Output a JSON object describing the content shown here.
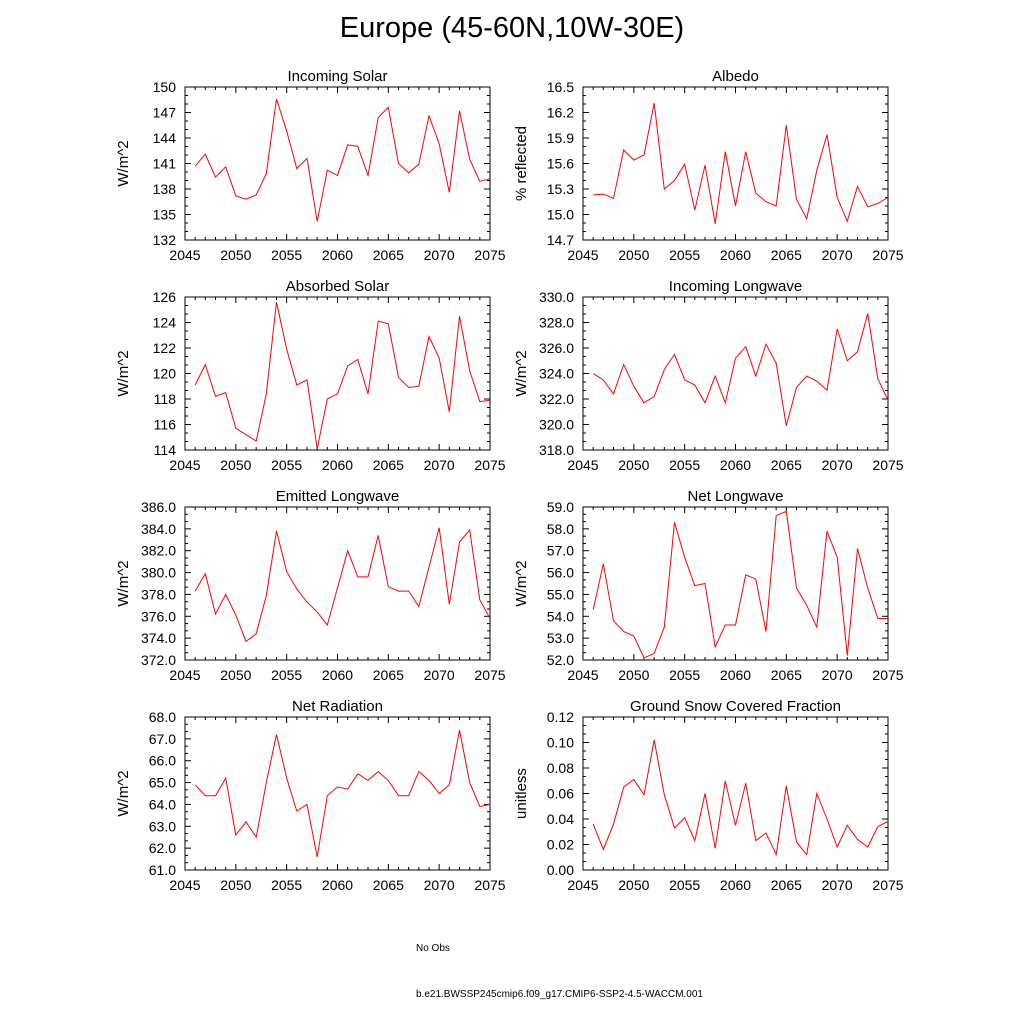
{
  "figure_title": "Europe (45-60N,10W-30E)",
  "legend": {
    "obs_label": "No Obs",
    "model_label": "b.e21.BWSSP245cmip6.f09_g17.CMIP6-SSP2-4.5-WACCM.001",
    "obs_color": "#3a3aa8",
    "model_color": "#ff0000"
  },
  "chart_data": [
    {
      "type": "line",
      "title": "Incoming Solar",
      "ylabel": "W/m^2",
      "xlabel": "",
      "xlim": [
        2045,
        2075
      ],
      "ylim": [
        132,
        150
      ],
      "yticks": [
        "132",
        "135",
        "138",
        "141",
        "144",
        "147",
        "150"
      ],
      "xticks": [
        "2045",
        "2050",
        "2055",
        "2060",
        "2065",
        "2070",
        "2075"
      ],
      "series": [
        {
          "name": "b.e21.BWSSP245cmip6.f09_g17.CMIP6-SSP2-4.5-WACCM.001",
          "x": [
            2046,
            2047,
            2048,
            2049,
            2050,
            2051,
            2052,
            2053,
            2054,
            2055,
            2056,
            2057,
            2058,
            2059,
            2060,
            2061,
            2062,
            2063,
            2064,
            2065,
            2066,
            2067,
            2068,
            2069,
            2070,
            2071,
            2072,
            2073,
            2074,
            2075
          ],
          "values": [
            140.7,
            142.1,
            139.4,
            140.6,
            137.2,
            136.8,
            137.3,
            139.8,
            148.6,
            144.8,
            140.4,
            141.6,
            134.2,
            140.2,
            139.6,
            143.2,
            143.0,
            139.6,
            146.4,
            147.6,
            141.0,
            139.9,
            140.9,
            146.6,
            143.3,
            137.6,
            147.2,
            141.5,
            138.9,
            139.2
          ]
        }
      ]
    },
    {
      "type": "line",
      "title": "Albedo",
      "ylabel": "% reflected",
      "xlabel": "",
      "xlim": [
        2045,
        2075
      ],
      "ylim": [
        14.7,
        16.5
      ],
      "yticks": [
        "14.7",
        "15.0",
        "15.3",
        "15.6",
        "15.9",
        "16.2",
        "16.5"
      ],
      "xticks": [
        "2045",
        "2050",
        "2055",
        "2060",
        "2065",
        "2070",
        "2075"
      ],
      "series": [
        {
          "name": "b.e21.BWSSP245cmip6.f09_g17.CMIP6-SSP2-4.5-WACCM.001",
          "x": [
            2046,
            2047,
            2048,
            2049,
            2050,
            2051,
            2052,
            2053,
            2054,
            2055,
            2056,
            2057,
            2058,
            2059,
            2060,
            2061,
            2062,
            2063,
            2064,
            2065,
            2066,
            2067,
            2068,
            2069,
            2070,
            2071,
            2072,
            2073,
            2074,
            2075
          ],
          "values": [
            15.23,
            15.24,
            15.19,
            15.76,
            15.64,
            15.7,
            16.31,
            15.3,
            15.4,
            15.59,
            15.05,
            15.58,
            14.89,
            15.74,
            15.1,
            15.74,
            15.25,
            15.15,
            15.1,
            16.05,
            15.18,
            14.95,
            15.52,
            15.94,
            15.2,
            14.92,
            15.33,
            15.09,
            15.13,
            15.2
          ]
        }
      ]
    },
    {
      "type": "line",
      "title": "Absorbed Solar",
      "ylabel": "W/m^2",
      "xlabel": "",
      "xlim": [
        2045,
        2075
      ],
      "ylim": [
        114,
        126
      ],
      "yticks": [
        "114",
        "116",
        "118",
        "120",
        "122",
        "124",
        "126"
      ],
      "xticks": [
        "2045",
        "2050",
        "2055",
        "2060",
        "2065",
        "2070",
        "2075"
      ],
      "series": [
        {
          "name": "b.e21.BWSSP245cmip6.f09_g17.CMIP6-SSP2-4.5-WACCM.001",
          "x": [
            2046,
            2047,
            2048,
            2049,
            2050,
            2051,
            2052,
            2053,
            2054,
            2055,
            2056,
            2057,
            2058,
            2059,
            2060,
            2061,
            2062,
            2063,
            2064,
            2065,
            2066,
            2067,
            2068,
            2069,
            2070,
            2071,
            2072,
            2073,
            2074,
            2075
          ],
          "values": [
            119.1,
            120.7,
            118.2,
            118.5,
            115.7,
            115.2,
            114.7,
            118.4,
            125.6,
            121.9,
            119.1,
            119.5,
            114.1,
            118.0,
            118.4,
            120.6,
            121.1,
            118.4,
            124.1,
            123.9,
            119.7,
            118.9,
            119.0,
            122.9,
            121.2,
            117.0,
            124.5,
            120.2,
            117.8,
            117.9
          ]
        }
      ]
    },
    {
      "type": "line",
      "title": "Incoming Longwave",
      "ylabel": "W/m^2",
      "xlabel": "",
      "xlim": [
        2045,
        2075
      ],
      "ylim": [
        318.0,
        330.0
      ],
      "yticks": [
        "318.0",
        "320.0",
        "322.0",
        "324.0",
        "326.0",
        "328.0",
        "330.0"
      ],
      "xticks": [
        "2045",
        "2050",
        "2055",
        "2060",
        "2065",
        "2070",
        "2075"
      ],
      "series": [
        {
          "name": "b.e21.BWSSP245cmip6.f09_g17.CMIP6-SSP2-4.5-WACCM.001",
          "x": [
            2046,
            2047,
            2048,
            2049,
            2050,
            2051,
            2052,
            2053,
            2054,
            2055,
            2056,
            2057,
            2058,
            2059,
            2060,
            2061,
            2062,
            2063,
            2064,
            2065,
            2066,
            2067,
            2068,
            2069,
            2070,
            2071,
            2072,
            2073,
            2074,
            2075
          ],
          "values": [
            324.0,
            323.5,
            322.4,
            324.7,
            323.0,
            321.7,
            322.2,
            324.3,
            325.5,
            323.5,
            323.1,
            321.7,
            323.8,
            321.7,
            325.2,
            326.1,
            323.8,
            326.3,
            324.8,
            319.9,
            322.9,
            323.8,
            323.4,
            322.7,
            327.5,
            325.0,
            325.7,
            328.7,
            323.6,
            321.9
          ]
        }
      ]
    },
    {
      "type": "line",
      "title": "Emitted Longwave",
      "ylabel": "W/m^2",
      "xlabel": "",
      "xlim": [
        2045,
        2075
      ],
      "ylim": [
        372.0,
        386.0
      ],
      "yticks": [
        "372.0",
        "374.0",
        "376.0",
        "378.0",
        "380.0",
        "382.0",
        "384.0",
        "386.0"
      ],
      "xticks": [
        "2045",
        "2050",
        "2055",
        "2060",
        "2065",
        "2070",
        "2075"
      ],
      "series": [
        {
          "name": "b.e21.BWSSP245cmip6.f09_g17.CMIP6-SSP2-4.5-WACCM.001",
          "x": [
            2046,
            2047,
            2048,
            2049,
            2050,
            2051,
            2052,
            2053,
            2054,
            2055,
            2056,
            2057,
            2058,
            2059,
            2060,
            2061,
            2062,
            2063,
            2064,
            2065,
            2066,
            2067,
            2068,
            2069,
            2070,
            2071,
            2072,
            2073,
            2074,
            2075
          ],
          "values": [
            378.3,
            379.9,
            376.2,
            378.0,
            376.1,
            373.7,
            374.4,
            377.9,
            383.8,
            380.1,
            378.5,
            377.3,
            376.4,
            375.2,
            378.6,
            382.0,
            379.6,
            379.6,
            383.4,
            378.7,
            378.3,
            378.3,
            376.9,
            380.5,
            384.1,
            377.1,
            382.8,
            383.9,
            377.5,
            375.8
          ]
        }
      ]
    },
    {
      "type": "line",
      "title": "Net Longwave",
      "ylabel": "W/m^2",
      "xlabel": "",
      "xlim": [
        2045,
        2075
      ],
      "ylim": [
        52.0,
        59.0
      ],
      "yticks": [
        "52.0",
        "53.0",
        "54.0",
        "55.0",
        "56.0",
        "57.0",
        "58.0",
        "59.0"
      ],
      "xticks": [
        "2045",
        "2050",
        "2055",
        "2060",
        "2065",
        "2070",
        "2075"
      ],
      "series": [
        {
          "name": "b.e21.BWSSP245cmip6.f09_g17.CMIP6-SSP2-4.5-WACCM.001",
          "x": [
            2046,
            2047,
            2048,
            2049,
            2050,
            2051,
            2052,
            2053,
            2054,
            2055,
            2056,
            2057,
            2058,
            2059,
            2060,
            2061,
            2062,
            2063,
            2064,
            2065,
            2066,
            2067,
            2068,
            2069,
            2070,
            2071,
            2072,
            2073,
            2074,
            2075
          ],
          "values": [
            54.3,
            56.4,
            53.8,
            53.3,
            53.1,
            52.1,
            52.3,
            53.5,
            58.3,
            56.7,
            55.4,
            55.5,
            52.6,
            53.6,
            53.6,
            55.9,
            55.7,
            53.3,
            58.6,
            58.8,
            55.3,
            54.5,
            53.5,
            57.9,
            56.7,
            52.2,
            57.1,
            55.3,
            53.9,
            53.9
          ]
        }
      ]
    },
    {
      "type": "line",
      "title": "Net Radiation",
      "ylabel": "W/m^2",
      "xlabel": "",
      "xlim": [
        2045,
        2075
      ],
      "ylim": [
        61.0,
        68.0
      ],
      "yticks": [
        "61.0",
        "62.0",
        "63.0",
        "64.0",
        "65.0",
        "66.0",
        "67.0",
        "68.0"
      ],
      "xticks": [
        "2045",
        "2050",
        "2055",
        "2060",
        "2065",
        "2070",
        "2075"
      ],
      "series": [
        {
          "name": "b.e21.BWSSP245cmip6.f09_g17.CMIP6-SSP2-4.5-WACCM.001",
          "x": [
            2046,
            2047,
            2048,
            2049,
            2050,
            2051,
            2052,
            2053,
            2054,
            2055,
            2056,
            2057,
            2058,
            2059,
            2060,
            2061,
            2062,
            2063,
            2064,
            2065,
            2066,
            2067,
            2068,
            2069,
            2070,
            2071,
            2072,
            2073,
            2074,
            2075
          ],
          "values": [
            64.9,
            64.4,
            64.4,
            65.2,
            62.6,
            63.2,
            62.5,
            65.0,
            67.2,
            65.2,
            63.7,
            64.0,
            61.6,
            64.4,
            64.8,
            64.7,
            65.4,
            65.1,
            65.5,
            65.1,
            64.4,
            64.4,
            65.5,
            65.1,
            64.5,
            64.9,
            67.4,
            65.0,
            63.9,
            64.0
          ]
        }
      ]
    },
    {
      "type": "line",
      "title": "Ground Snow Covered Fraction",
      "ylabel": "unitless",
      "xlabel": "",
      "xlim": [
        2045,
        2075
      ],
      "ylim": [
        0.0,
        0.12
      ],
      "yticks": [
        "0.00",
        "0.02",
        "0.04",
        "0.06",
        "0.08",
        "0.10",
        "0.12"
      ],
      "xticks": [
        "2045",
        "2050",
        "2055",
        "2060",
        "2065",
        "2070",
        "2075"
      ],
      "series": [
        {
          "name": "b.e21.BWSSP245cmip6.f09_g17.CMIP6-SSP2-4.5-WACCM.001",
          "x": [
            2046,
            2047,
            2048,
            2049,
            2050,
            2051,
            2052,
            2053,
            2054,
            2055,
            2056,
            2057,
            2058,
            2059,
            2060,
            2061,
            2062,
            2063,
            2064,
            2065,
            2066,
            2067,
            2068,
            2069,
            2070,
            2071,
            2072,
            2073,
            2074,
            2075
          ],
          "values": [
            0.036,
            0.016,
            0.036,
            0.065,
            0.071,
            0.059,
            0.102,
            0.059,
            0.033,
            0.041,
            0.023,
            0.06,
            0.017,
            0.07,
            0.035,
            0.068,
            0.023,
            0.029,
            0.012,
            0.066,
            0.022,
            0.012,
            0.06,
            0.04,
            0.018,
            0.035,
            0.024,
            0.018,
            0.034,
            0.038
          ]
        }
      ]
    }
  ]
}
